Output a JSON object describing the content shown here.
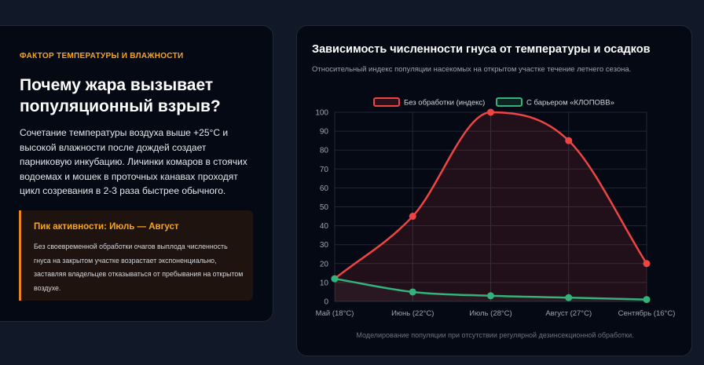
{
  "left_card": {
    "eyebrow": "ФАКТОР ТЕМПЕРАТУРЫ И ВЛАЖНОСТИ",
    "heading": "Почему жара вызывает популяционный взрыв?",
    "body": "Сочетание температуры воздуха выше +25°C и высокой влажности после дождей создает парниковую инкубацию. Личинки комаров в стоячих водоемах и мошек в проточных канавах проходят цикл созревания в 2-3 раза быстрее обычного.",
    "callout_title": "Пик активности: Июль — Август",
    "callout_text": "Без своевременной обработки очагов выплода численность гнуса на закрытом участке возрастает экспоненциально, заставляя владельцев отказываться от пребывания на открытом воздухе."
  },
  "right_card": {
    "title": "Зависимость численности гнуса от температуры и осадков",
    "subtitle": "Относительный индекс популяции насекомых на открытом участке течение летнего сезона.",
    "footnote": "Моделирование популяции при отсутствии регулярной дезинсекционной обработки."
  },
  "colors": {
    "accent": "#f5a524",
    "series_untreated": "#ef4444",
    "series_barrier": "#34b27b"
  },
  "chart_data": {
    "type": "line",
    "categories": [
      "Май (18°C)",
      "Июнь (22°C)",
      "Июль (28°C)",
      "Август (27°C)",
      "Сентябрь (16°C)"
    ],
    "series": [
      {
        "name": "Без обработки (индекс)",
        "values": [
          12,
          45,
          100,
          85,
          20
        ],
        "color": "#ef4444",
        "fill": true
      },
      {
        "name": "С барьером «КЛОПОВВ»",
        "values": [
          12,
          5,
          3,
          2,
          1
        ],
        "color": "#34b27b",
        "fill": false
      }
    ],
    "ylim": [
      0,
      100
    ],
    "yticks": [
      0,
      10,
      20,
      30,
      40,
      50,
      60,
      70,
      80,
      90,
      100
    ],
    "grid": true,
    "legend": "top"
  }
}
